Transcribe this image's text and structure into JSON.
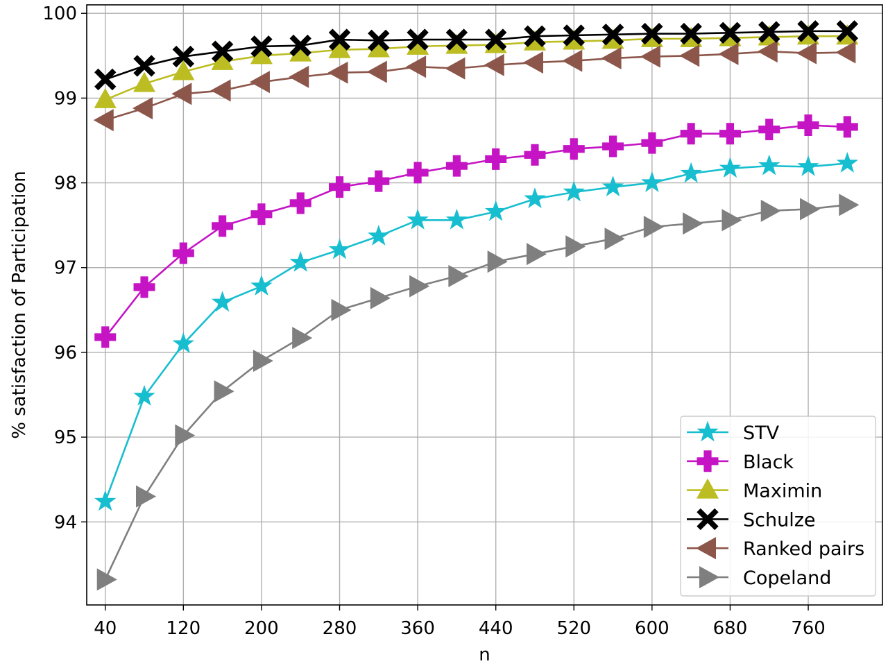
{
  "chart_data": {
    "type": "line",
    "xlabel": "n",
    "ylabel": "% satisfaction of Participation",
    "x": [
      40,
      80,
      120,
      160,
      200,
      240,
      280,
      320,
      360,
      400,
      440,
      480,
      520,
      560,
      600,
      640,
      680,
      720,
      760,
      800
    ],
    "xticks": [
      "40",
      "120",
      "200",
      "280",
      "360",
      "440",
      "520",
      "600",
      "680",
      "760"
    ],
    "yticks": [
      "94",
      "95",
      "96",
      "97",
      "98",
      "99",
      "100"
    ],
    "xlim": [
      21,
      836
    ],
    "ylim": [
      93.02,
      100.1
    ],
    "grid": true,
    "legend_position": "lower-right",
    "series": [
      {
        "name": "STV",
        "color": "#17becf",
        "marker": "star",
        "values": [
          94.24,
          95.48,
          96.1,
          96.59,
          96.78,
          97.06,
          97.21,
          97.37,
          97.56,
          97.56,
          97.66,
          97.81,
          97.89,
          97.95,
          98.0,
          98.11,
          98.17,
          98.2,
          98.19,
          98.23
        ]
      },
      {
        "name": "Black",
        "color": "#c414c4",
        "marker": "plus",
        "values": [
          96.18,
          96.77,
          97.17,
          97.49,
          97.63,
          97.76,
          97.95,
          98.02,
          98.12,
          98.2,
          98.28,
          98.33,
          98.4,
          98.43,
          98.47,
          98.58,
          98.58,
          98.63,
          98.68,
          98.66
        ]
      },
      {
        "name": "Maximin",
        "color": "#bcbd22",
        "marker": "triangle-up",
        "values": [
          98.98,
          99.17,
          99.31,
          99.43,
          99.5,
          99.53,
          99.57,
          99.58,
          99.61,
          99.62,
          99.63,
          99.66,
          99.67,
          99.68,
          99.7,
          99.7,
          99.71,
          99.72,
          99.73,
          99.73
        ]
      },
      {
        "name": "Schulze",
        "color": "#000000",
        "marker": "x",
        "values": [
          99.22,
          99.38,
          99.49,
          99.55,
          99.61,
          99.62,
          99.69,
          99.68,
          99.69,
          99.69,
          99.69,
          99.73,
          99.74,
          99.75,
          99.76,
          99.76,
          99.77,
          99.78,
          99.79,
          99.79
        ]
      },
      {
        "name": "Ranked pairs",
        "color": "#8c564b",
        "marker": "triangle-left",
        "values": [
          98.74,
          98.88,
          99.05,
          99.09,
          99.19,
          99.25,
          99.3,
          99.31,
          99.37,
          99.35,
          99.39,
          99.42,
          99.44,
          99.47,
          99.49,
          99.5,
          99.52,
          99.55,
          99.53,
          99.54
        ]
      },
      {
        "name": "Copeland",
        "color": "#7f7f7f",
        "marker": "triangle-right",
        "values": [
          93.32,
          94.3,
          95.02,
          95.54,
          95.9,
          96.17,
          96.5,
          96.64,
          96.78,
          96.9,
          97.07,
          97.16,
          97.25,
          97.34,
          97.48,
          97.52,
          97.56,
          97.67,
          97.69,
          97.74
        ]
      }
    ]
  }
}
